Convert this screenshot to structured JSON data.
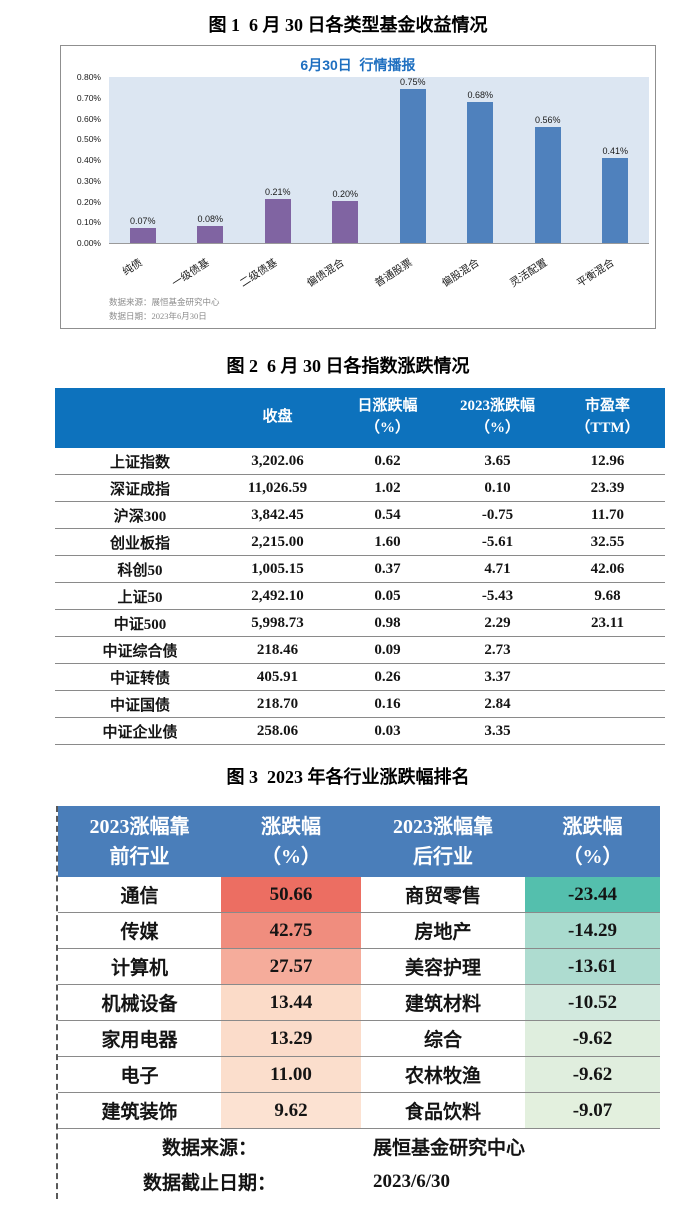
{
  "fig1": {
    "caption": "图 1  6 月 30 日各类型基金收益情况",
    "source_line1": "数据来源：展恒基金研究中心",
    "source_line2": "数据日期：2023年6月30日"
  },
  "chart_data": {
    "type": "bar",
    "title": "6月30日  行情播报",
    "categories": [
      "纯债",
      "一级债基",
      "二级债基",
      "偏债混合",
      "普通股票",
      "偏股混合",
      "灵活配置",
      "平衡混合"
    ],
    "values": [
      0.07,
      0.08,
      0.21,
      0.2,
      0.75,
      0.68,
      0.56,
      0.41
    ],
    "labels": [
      "0.07%",
      "0.08%",
      "0.21%",
      "0.20%",
      "0.75%",
      "0.68%",
      "0.56%",
      "0.41%"
    ],
    "bar_colors": [
      "#8064A2",
      "#8064A2",
      "#8064A2",
      "#8064A2",
      "#4F81BD",
      "#4F81BD",
      "#4F81BD",
      "#4F81BD"
    ],
    "xlabel": "",
    "ylabel": "",
    "ylim": [
      0,
      0.8
    ],
    "yticks": [
      "0.80%",
      "0.70%",
      "0.60%",
      "0.50%",
      "0.40%",
      "0.30%",
      "0.20%",
      "0.10%",
      "0.00%"
    ],
    "plot_bg": "#DCE6F2",
    "grid": false,
    "legend": "none"
  },
  "fig2": {
    "caption": "图 2  6 月 30 日各指数涨跌情况",
    "headers": [
      "",
      "收盘",
      "日涨跌幅\n（%）",
      "2023涨跌幅\n（%）",
      "市盈率\n（TTM）"
    ],
    "rows": [
      {
        "name": "上证指数",
        "close": "3,202.06",
        "daily": "0.62",
        "daily_color": "red",
        "ytd": "3.65",
        "ytd_color": "red",
        "pe": "12.96"
      },
      {
        "name": "深证成指",
        "close": "11,026.59",
        "daily": "1.02",
        "daily_color": "red",
        "ytd": "0.10",
        "ytd_color": "red",
        "pe": "23.39"
      },
      {
        "name": "沪深300",
        "close": "3,842.45",
        "daily": "0.54",
        "daily_color": "red",
        "ytd": "-0.75",
        "ytd_color": "green",
        "pe": "11.70"
      },
      {
        "name": "创业板指",
        "close": "2,215.00",
        "daily": "1.60",
        "daily_color": "red",
        "ytd": "-5.61",
        "ytd_color": "green",
        "pe": "32.55"
      },
      {
        "name": "科创50",
        "close": "1,005.15",
        "daily": "0.37",
        "daily_color": "red",
        "ytd": "4.71",
        "ytd_color": "red",
        "pe": "42.06"
      },
      {
        "name": "上证50",
        "close": "2,492.10",
        "daily": "0.05",
        "daily_color": "red",
        "ytd": "-5.43",
        "ytd_color": "green",
        "pe": "9.68"
      },
      {
        "name": "中证500",
        "close": "5,998.73",
        "daily": "0.98",
        "daily_color": "red",
        "ytd": "2.29",
        "ytd_color": "red",
        "pe": "23.11"
      },
      {
        "name": "中证综合债",
        "close": "218.46",
        "daily": "0.09",
        "daily_color": "red",
        "ytd": "2.73",
        "ytd_color": "red",
        "pe": ""
      },
      {
        "name": "中证转债",
        "close": "405.91",
        "daily": "0.26",
        "daily_color": "red",
        "ytd": "3.37",
        "ytd_color": "red",
        "pe": ""
      },
      {
        "name": "中证国债",
        "close": "218.70",
        "daily": "0.16",
        "daily_color": "red",
        "ytd": "2.84",
        "ytd_color": "red",
        "pe": ""
      },
      {
        "name": "中证企业债",
        "close": "258.06",
        "daily": "0.03",
        "daily_color": "red",
        "ytd": "3.35",
        "ytd_color": "red",
        "pe": ""
      }
    ]
  },
  "fig3": {
    "caption": "图 3  2023 年各行业涨跌幅排名",
    "headers": [
      "2023涨幅靠\n前行业",
      "涨跌幅\n（%）",
      "2023涨幅靠\n后行业",
      "涨跌幅\n（%）"
    ],
    "rows": [
      {
        "gainer": "通信",
        "gain": "50.66",
        "gain_bg": "#EC6E62",
        "loser": "商贸零售",
        "loss": "-23.44",
        "loss_bg": "#54BFAD"
      },
      {
        "gainer": "传媒",
        "gain": "42.75",
        "gain_bg": "#F08D7E",
        "loser": "房地产",
        "loss": "-14.29",
        "loss_bg": "#A9DBCE"
      },
      {
        "gainer": "计算机",
        "gain": "27.57",
        "gain_bg": "#F5AC9B",
        "loser": "美容护理",
        "loss": "-13.61",
        "loss_bg": "#AEDCD0"
      },
      {
        "gainer": "机械设备",
        "gain": "13.44",
        "gain_bg": "#FBDBC8",
        "loser": "建筑材料",
        "loss": "-10.52",
        "loss_bg": "#D2E9DE"
      },
      {
        "gainer": "家用电器",
        "gain": "13.29",
        "gain_bg": "#FBDCCA",
        "loser": "综合",
        "loss": "-9.62",
        "loss_bg": "#DFEEDE"
      },
      {
        "gainer": "电子",
        "gain": "11.00",
        "gain_bg": "#FBDECC",
        "loser": "农林牧渔",
        "loss": "-9.62",
        "loss_bg": "#E0EEDE"
      },
      {
        "gainer": "建筑装饰",
        "gain": "9.62",
        "gain_bg": "#FCE2D2",
        "loser": "食品饮料",
        "loss": "-9.07",
        "loss_bg": "#E3F0DE"
      }
    ],
    "footer": [
      {
        "label": "数据来源：",
        "value": "展恒基金研究中心"
      },
      {
        "label": "数据截止日期：",
        "value": "2023/6/30"
      }
    ]
  },
  "colors": {
    "table2_header_bg": "#0D72BD",
    "table3_header_bg": "#4A7EBA",
    "up_text": "#F63B2B",
    "down_text": "#00A550",
    "bar_purple": "#8064A2",
    "bar_blue": "#4F81BD",
    "chart_title_blue": "#1E6FC0",
    "plot_bg": "#DCE6F2"
  }
}
